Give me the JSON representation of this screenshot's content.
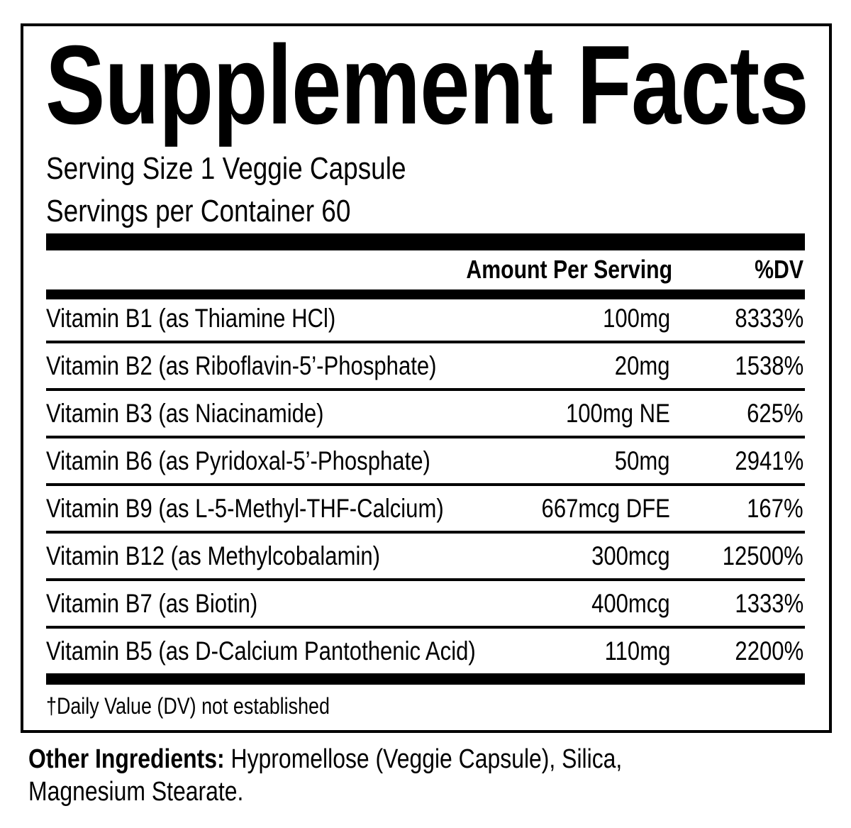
{
  "title": "Supplement Facts",
  "serving_size": "Serving Size 1 Veggie Capsule",
  "servings_per_container": "Servings per Container 60",
  "header": {
    "amount": "Amount Per Serving",
    "dv": "%DV"
  },
  "rows": [
    {
      "name": "Vitamin B1 (as Thiamine HCl)",
      "amount": "100mg",
      "dv": "8333%"
    },
    {
      "name": "Vitamin B2 (as Riboflavin-5’-Phosphate)",
      "amount": "20mg",
      "dv": "1538%"
    },
    {
      "name": "Vitamin B3 (as Niacinamide)",
      "amount": "100mg NE",
      "dv": "625%"
    },
    {
      "name": "Vitamin B6 (as Pyridoxal-5’-Phosphate)",
      "amount": "50mg",
      "dv": "2941%"
    },
    {
      "name": "Vitamin B9 (as L-5-Methyl-THF-Calcium)",
      "amount": "667mcg DFE",
      "dv": "167%"
    },
    {
      "name": "Vitamin B12 (as Methylcobalamin)",
      "amount": "300mcg",
      "dv": "12500%"
    },
    {
      "name": "Vitamin B7 (as Biotin)",
      "amount": "400mcg",
      "dv": "1333%"
    },
    {
      "name": "Vitamin B5 (as D-Calcium Pantothenic Acid)",
      "amount": "110mg",
      "dv": "2200%"
    }
  ],
  "footnote": "†Daily Value (DV) not established",
  "other_ingredients": {
    "label": "Other Ingredients:",
    "line1": " Hypromellose (Veggie Capsule), Silica,",
    "line2": "Magnesium Stearate."
  }
}
